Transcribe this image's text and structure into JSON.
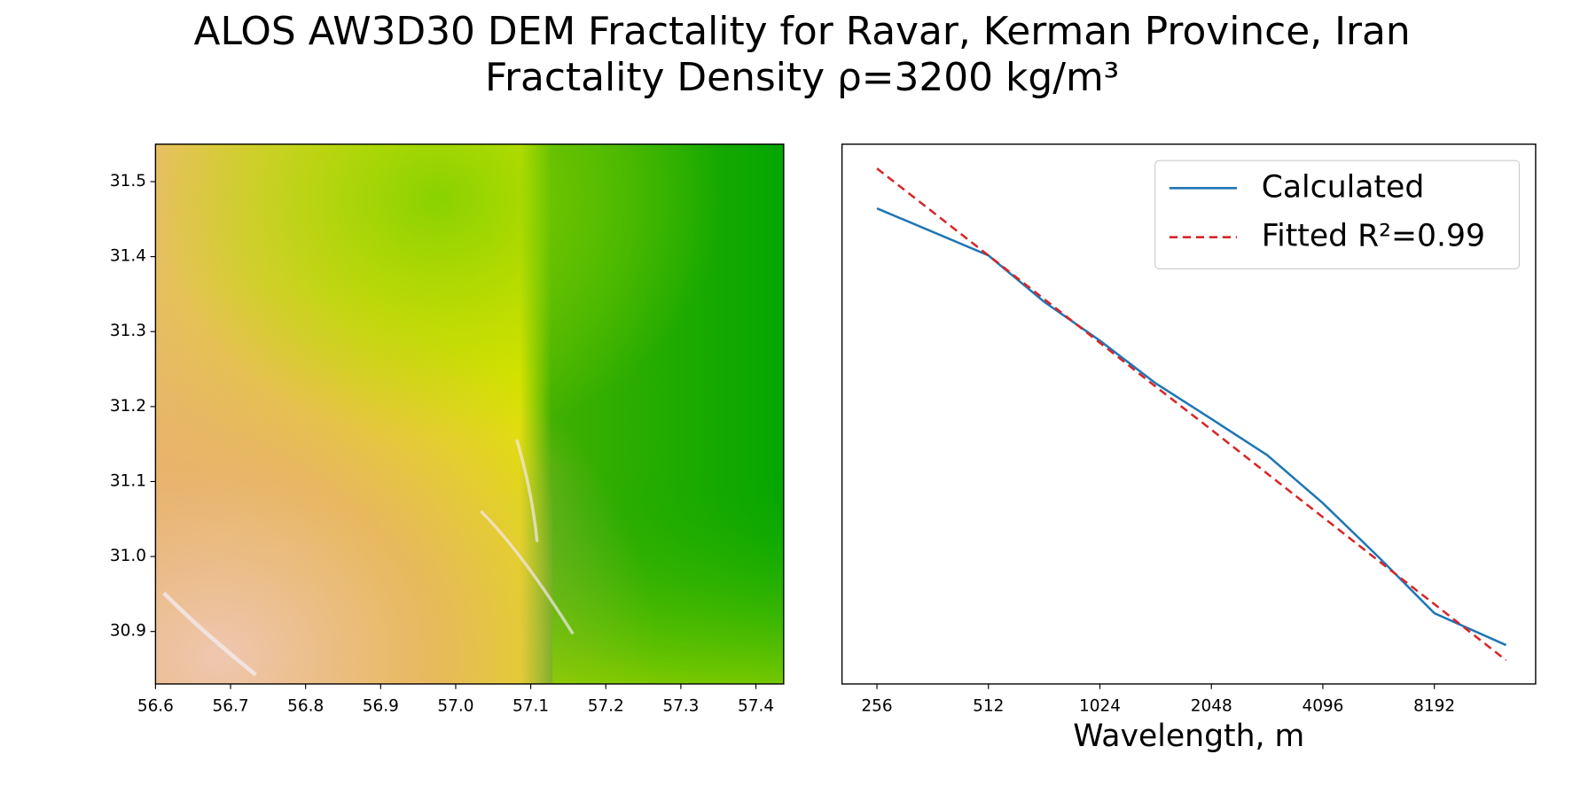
{
  "chart_data": [
    {
      "type": "image",
      "title": "ALOS AW3D30 DEM Fractality for Ravar, Kerman Province, Iran",
      "xlim": [
        56.6,
        57.437
      ],
      "ylim": [
        30.83,
        31.55
      ],
      "xticks": [
        56.6,
        56.7,
        56.8,
        56.9,
        {
          "value": 57,
          "label": "57.0"
        },
        57.1,
        57.2,
        57.3,
        57.4
      ],
      "yticks": [
        30.9,
        {
          "value": 31,
          "label": "31.0"
        },
        31.1,
        31.2,
        31.3,
        31.4,
        31.5
      ]
    },
    {
      "type": "line",
      "title": "Fractality Density ρ=3200 kg/m³",
      "xlabel": "Wavelength, m",
      "xscale": "log",
      "xlim": [
        206,
        15380
      ],
      "ylim": [
        0,
        1
      ],
      "xticks": [
        256,
        512,
        1024,
        2048,
        4096,
        8192
      ],
      "x": [
        256,
        512,
        724,
        1024,
        1448,
        2048,
        2896,
        4096,
        5793,
        8192,
        12800
      ],
      "legend": "upper right",
      "series": [
        {
          "name": "Calculated",
          "color": "#1f77b4",
          "style": "solid",
          "values": [
            0.881,
            0.794,
            0.708,
            0.636,
            0.557,
            0.491,
            0.424,
            0.335,
            0.235,
            0.131,
            0.072
          ]
        },
        {
          "name": "Fitted R²=0.99",
          "color": "#d62728",
          "style": "dashed",
          "values": [
            0.955,
            0.794,
            0.713,
            0.632,
            0.551,
            0.471,
            0.39,
            0.309,
            0.228,
            0.148,
            0.044
          ]
        }
      ]
    }
  ]
}
